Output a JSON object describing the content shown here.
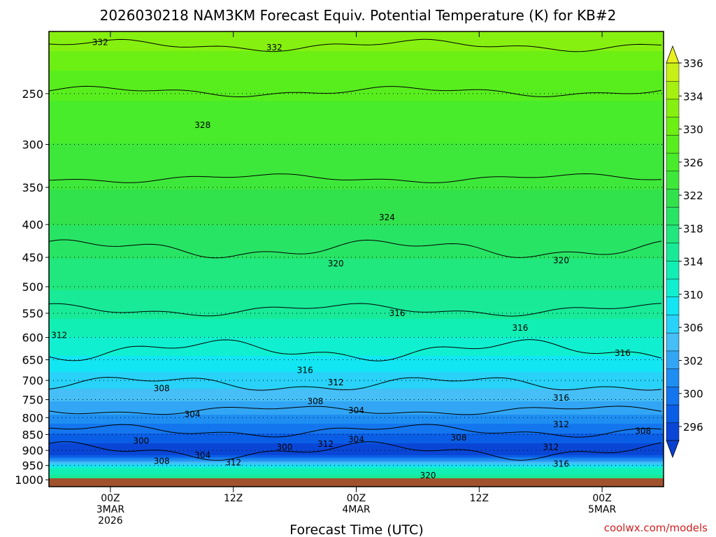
{
  "chart_data": {
    "type": "heatmap",
    "title": "2026030218 NAM3KM Forecast Equiv. Potential Temperature (K) for KB#2",
    "xlabel": "Forecast Time (UTC)",
    "ylabel": "",
    "credit": "coolwx.com/models",
    "x_range_hours": [
      -6,
      54
    ],
    "y_range_hPa": [
      200,
      1025
    ],
    "y_scale": "log-pressure",
    "y_ticks": [
      250,
      300,
      350,
      400,
      450,
      500,
      550,
      600,
      650,
      700,
      750,
      800,
      850,
      900,
      950,
      1000
    ],
    "x_ticks": [
      {
        "hour": 0,
        "lines": [
          "00Z",
          "3MAR",
          "2026"
        ]
      },
      {
        "hour": 12,
        "lines": [
          "12Z"
        ]
      },
      {
        "hour": 24,
        "lines": [
          "00Z",
          "4MAR"
        ]
      },
      {
        "hour": 36,
        "lines": [
          "12Z"
        ]
      },
      {
        "hour": 48,
        "lines": [
          "00Z",
          "5MAR"
        ]
      }
    ],
    "grid": "dotted horizontal at y ticks",
    "colorbar": {
      "position": "right",
      "levels": [
        296,
        298,
        300,
        302,
        304,
        306,
        308,
        310,
        312,
        314,
        316,
        318,
        320,
        322,
        324,
        326,
        328,
        330,
        332,
        334,
        336,
        338
      ],
      "labels": [
        "296",
        "300",
        "302",
        "306",
        "310",
        "314",
        "318",
        "322",
        "326",
        "330",
        "334",
        "336"
      ],
      "colors": [
        "#0a46d6",
        "#0a5ee6",
        "#1476ee",
        "#1e8ef2",
        "#32a6f4",
        "#46bef6",
        "#28d2f8",
        "#12e6f2",
        "#10f0d0",
        "#12efb4",
        "#18ea98",
        "#20e87e",
        "#28e464",
        "#32e24c",
        "#3ee83a",
        "#48ec2a",
        "#58ee1e",
        "#6cef12",
        "#86f010",
        "#a6f010",
        "#c8f018"
      ]
    },
    "profile": [
      {
        "p": 200,
        "theta_e": 334
      },
      {
        "p": 230,
        "theta_e": 330
      },
      {
        "p": 270,
        "theta_e": 327
      },
      {
        "p": 330,
        "theta_e": 325
      },
      {
        "p": 400,
        "theta_e": 322
      },
      {
        "p": 480,
        "theta_e": 319
      },
      {
        "p": 560,
        "theta_e": 316
      },
      {
        "p": 640,
        "theta_e": 312
      },
      {
        "p": 720,
        "theta_e": 308
      },
      {
        "p": 790,
        "theta_e": 304
      },
      {
        "p": 860,
        "theta_e": 299
      },
      {
        "p": 910,
        "theta_e": 296
      },
      {
        "p": 960,
        "theta_e": 314
      },
      {
        "p": 1025,
        "theta_e": 320
      }
    ],
    "contour_labels": [
      {
        "text": "332",
        "hour": -1,
        "p": 208
      },
      {
        "text": "332",
        "hour": 16,
        "p": 212
      },
      {
        "text": "328",
        "hour": 9,
        "p": 280
      },
      {
        "text": "324",
        "hour": 27,
        "p": 390
      },
      {
        "text": "320",
        "hour": 22,
        "p": 460
      },
      {
        "text": "320",
        "hour": 44,
        "p": 455
      },
      {
        "text": "316",
        "hour": 28,
        "p": 550
      },
      {
        "text": "316",
        "hour": 40,
        "p": 580
      },
      {
        "text": "316",
        "hour": 50,
        "p": 635
      },
      {
        "text": "316",
        "hour": 19,
        "p": 675
      },
      {
        "text": "316",
        "hour": 44,
        "p": 745
      },
      {
        "text": "316",
        "hour": 44,
        "p": 945
      },
      {
        "text": "312",
        "hour": -5,
        "p": 595
      },
      {
        "text": "312",
        "hour": 22,
        "p": 705
      },
      {
        "text": "312",
        "hour": 44,
        "p": 820
      },
      {
        "text": "312",
        "hour": 43,
        "p": 890
      },
      {
        "text": "312",
        "hour": 12,
        "p": 940
      },
      {
        "text": "312",
        "hour": 21,
        "p": 880
      },
      {
        "text": "308",
        "hour": 5,
        "p": 720
      },
      {
        "text": "308",
        "hour": 20,
        "p": 755
      },
      {
        "text": "308",
        "hour": 34,
        "p": 860
      },
      {
        "text": "308",
        "hour": 52,
        "p": 840
      },
      {
        "text": "308",
        "hour": 5,
        "p": 935
      },
      {
        "text": "304",
        "hour": 8,
        "p": 790
      },
      {
        "text": "304",
        "hour": 24,
        "p": 780
      },
      {
        "text": "304",
        "hour": 24,
        "p": 865
      },
      {
        "text": "304",
        "hour": 9,
        "p": 915
      },
      {
        "text": "300",
        "hour": 3,
        "p": 870
      },
      {
        "text": "300",
        "hour": 17,
        "p": 890
      },
      {
        "text": "320",
        "hour": 31,
        "p": 985
      }
    ],
    "ground_color": "#a0522d"
  }
}
